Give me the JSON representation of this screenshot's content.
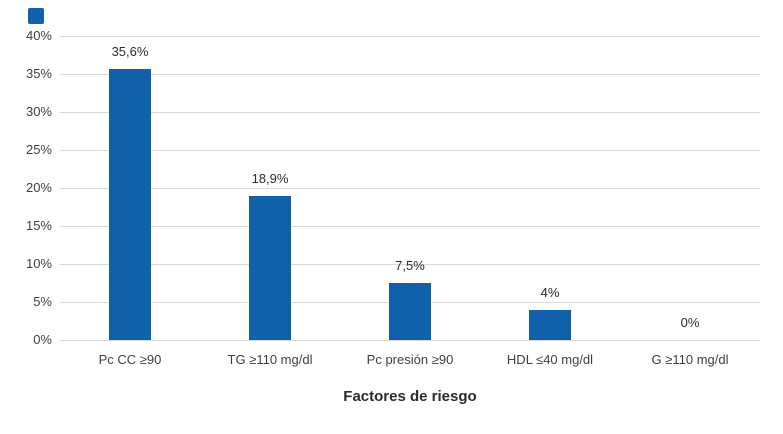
{
  "page": {
    "background": "#FFFFFF"
  },
  "decorations": {
    "corner_square_color": "#1060AA"
  },
  "chart_data": {
    "type": "bar",
    "title": "",
    "xlabel": "Factores de riesgo",
    "ylabel": "",
    "categories": [
      "Pc CC ≥90",
      "TG ≥110 mg/dl",
      "Pc presión ≥90",
      "HDL ≤40 mg/dl",
      "G ≥110 mg/dl"
    ],
    "values": [
      35.6,
      18.9,
      7.5,
      4,
      0
    ],
    "value_labels": [
      "35,6%",
      "18,9%",
      "7,5%",
      "4%",
      "0%"
    ],
    "ylim": [
      0,
      40
    ],
    "ytick_step": 5,
    "ytick_labels": [
      "0%",
      "5%",
      "10%",
      "15%",
      "20%",
      "25%",
      "30%",
      "35%",
      "40%"
    ],
    "grid": true,
    "legend": "none",
    "bar_color": "#1060AA",
    "gridline_color": "#D9D9D9",
    "axis_line_color": "#D9D9D9",
    "tick_text_color": "#3F3F3F",
    "label_text_color": "#2B2B2B"
  }
}
